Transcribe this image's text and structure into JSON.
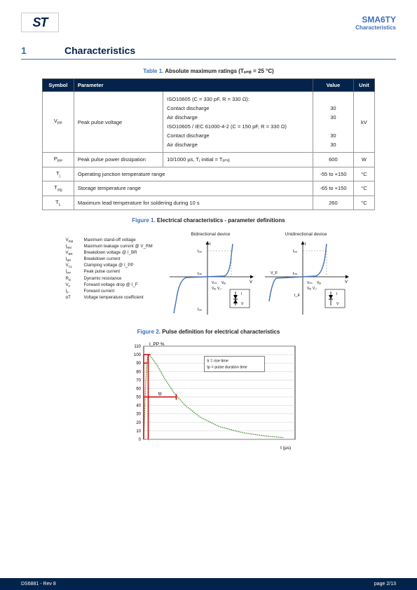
{
  "header": {
    "logo_text": "ST",
    "part_number": "SMA6TY",
    "subtitle": "Characteristics"
  },
  "section": {
    "number": "1",
    "title": "Characteristics"
  },
  "table1": {
    "caption_label": "Table 1.",
    "caption_text": "Absolute maximum ratings (Tₐₘᵦ = 25 °C)",
    "headers": {
      "symbol": "Symbol",
      "parameter": "Parameter",
      "value": "Value",
      "unit": "Unit"
    },
    "rows": [
      {
        "symbol": "V_PP",
        "parameter": "Peak pulse voltage",
        "conditions": [
          "ISO10605 (C = 330 pF, R = 330 Ω):",
          "Contact discharge",
          "Air discharge",
          "ISO10605 / IEC 61000-4-2 (C = 150 pF, R = 330 Ω)",
          "Contact discharge",
          "Air discharge"
        ],
        "values": [
          "",
          "30",
          "30",
          "",
          "30",
          "30"
        ],
        "unit": "kV"
      },
      {
        "symbol": "P_PP",
        "parameter": "Peak pulse power dissipation",
        "conditions": [
          "10/1000 µs, Tⱼ initial = Tₐₘᵦ"
        ],
        "values": [
          "600"
        ],
        "unit": "W"
      },
      {
        "symbol": "T_j",
        "parameter": "Operating junction temperature range",
        "conditions": null,
        "values": [
          "-55 to +150"
        ],
        "unit": "°C"
      },
      {
        "symbol": "T_stg",
        "parameter": "Storage temperature range",
        "conditions": null,
        "values": [
          "-65 to +150"
        ],
        "unit": "°C"
      },
      {
        "symbol": "T_L",
        "parameter": "Maximum lead temperature for soldering during 10 s",
        "conditions": null,
        "values": [
          "260"
        ],
        "unit": "°C"
      }
    ]
  },
  "figure1": {
    "caption_label": "Figure 1.",
    "caption_text": "Electrical characteristics - parameter definitions",
    "bidir_label": "Bidirectional device",
    "unidir_label": "Unidirectional device",
    "defs": [
      {
        "sym": "V_RM",
        "txt": "Maximum stand-off voltage"
      },
      {
        "sym": "I_RM",
        "txt": "Maximum leakage current @ V_RM"
      },
      {
        "sym": "V_BR",
        "txt": "Breakdown voltage @ I_BR"
      },
      {
        "sym": "I_BR",
        "txt": "Breakdown current"
      },
      {
        "sym": "V_CL",
        "txt": "Clamping voltage @ I_PP"
      },
      {
        "sym": "I_PP",
        "txt": "Peak pulse current"
      },
      {
        "sym": "R_D",
        "txt": "Dynamic resistance"
      },
      {
        "sym": "V_F",
        "txt": "Forward voltage drop @ I_F"
      },
      {
        "sym": "I_F",
        "txt": "Forward current"
      },
      {
        "sym": "αT",
        "txt": "Voltage temperature coefficient"
      }
    ],
    "curve_colors": {
      "axis": "#000000",
      "curve": "#3d6fb6",
      "dash": "#888888"
    },
    "axis_labels": {
      "i": "I",
      "v": "V",
      "ipp": "I_PP",
      "irm": "I_RM",
      "vbr": "V_BR",
      "vrm": "V_RM",
      "vcl": "V_CL",
      "if": "I_F",
      "vf": "V_F"
    }
  },
  "figure2": {
    "caption_label": "Figure 2.",
    "caption_text": "Pulse definition for electrical characteristics",
    "y_label": "I_PP %",
    "x_label": "t (µs)",
    "y_ticks": [
      0,
      10,
      20,
      30,
      40,
      50,
      60,
      70,
      80,
      90,
      100,
      110
    ],
    "legend": [
      "tr = rise time",
      "tp = pulse duration time"
    ],
    "tp_label": "tp",
    "curve_color": "#4a8b3a",
    "grid_color": "#cccccc",
    "marker_color": "#d00000",
    "axis_color": "#000000",
    "background": "#ffffff",
    "curve_points": [
      [
        0,
        0
      ],
      [
        4,
        50
      ],
      [
        8,
        90
      ],
      [
        12,
        100
      ],
      [
        20,
        97
      ],
      [
        35,
        88
      ],
      [
        55,
        72
      ],
      [
        80,
        55
      ],
      [
        110,
        40
      ],
      [
        150,
        26
      ],
      [
        200,
        15
      ],
      [
        260,
        8
      ],
      [
        320,
        4
      ],
      [
        370,
        2
      ]
    ]
  },
  "footer": {
    "left": "DS6881 - Rev 8",
    "right": "page 2/13"
  }
}
